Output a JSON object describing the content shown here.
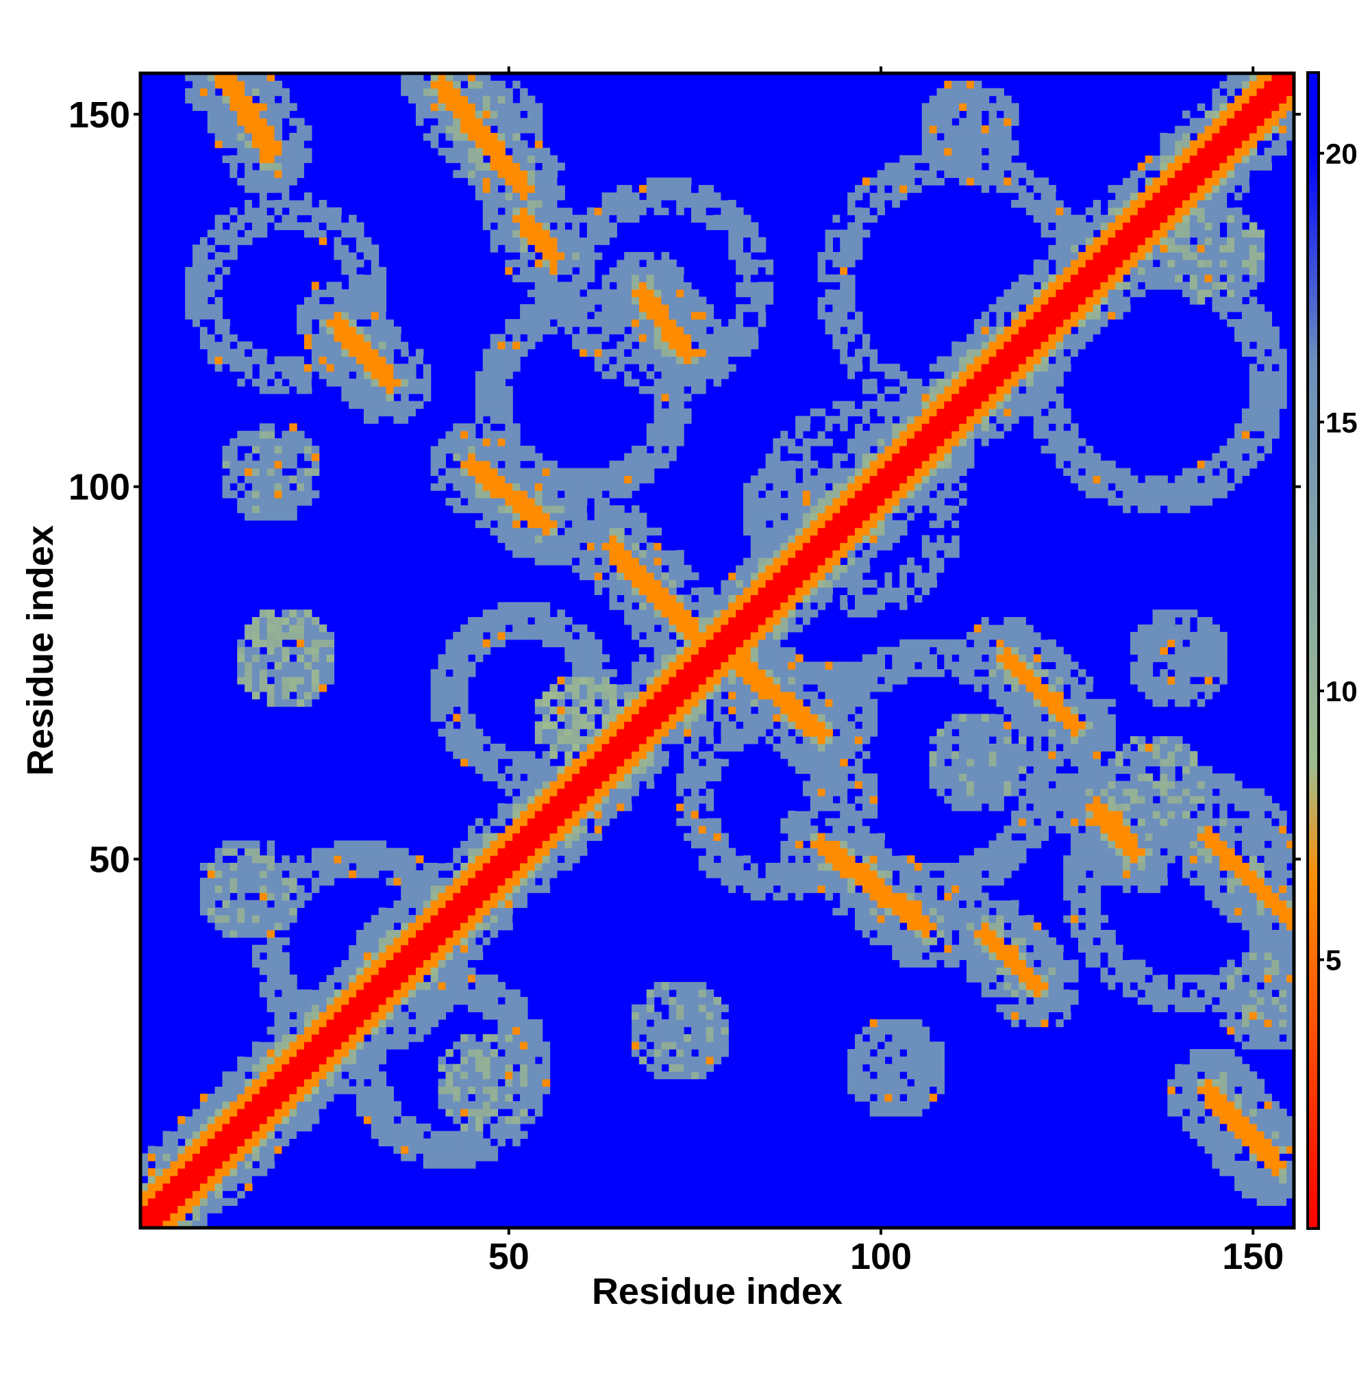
{
  "chart_data": {
    "type": "heatmap",
    "title": "",
    "xlabel": "Residue index",
    "ylabel": "Residue index",
    "xlim": [
      1,
      155
    ],
    "ylim": [
      1,
      155
    ],
    "x_ticks": [
      50,
      100,
      150
    ],
    "y_ticks": [
      50,
      100,
      150
    ],
    "x_tick_labels": [
      "50",
      "100",
      "150"
    ],
    "y_tick_labels": [
      "50",
      "100",
      "150"
    ],
    "colorbar": {
      "ticks": [
        5,
        10,
        15,
        20
      ],
      "tick_labels": [
        "5",
        "10",
        "15",
        "20"
      ],
      "range": [
        0,
        21.5
      ],
      "colors": [
        "#ff0000",
        "#ff8c00",
        "#9fbc8f",
        "#6d8fbc",
        "#0000ff"
      ]
    },
    "grid": false,
    "background_value": 21.5,
    "diagonal_band_value": 2,
    "contact_bands": [
      {
        "x": [
          12,
          18
        ],
        "y": [
          155,
          145
        ],
        "value": 7
      },
      {
        "x": [
          41,
          52
        ],
        "y": [
          154,
          140
        ],
        "value": 7
      },
      {
        "x": [
          52,
          56
        ],
        "y": [
          136,
          131
        ],
        "value": 7
      },
      {
        "x": [
          27,
          34
        ],
        "y": [
          122,
          114
        ],
        "value": 7
      },
      {
        "x": [
          68,
          74
        ],
        "y": [
          126,
          118
        ],
        "value": 7
      },
      {
        "x": [
          45,
          55
        ],
        "y": [
          103,
          95
        ],
        "value": 7
      },
      {
        "x": [
          64,
          75
        ],
        "y": [
          92,
          80
        ],
        "value": 7
      },
      {
        "x": [
          80,
          92
        ],
        "y": [
          77,
          67
        ],
        "value": 7
      },
      {
        "x": [
          92,
          106
        ],
        "y": [
          52,
          41
        ],
        "value": 7
      },
      {
        "x": [
          117,
          126
        ],
        "y": [
          77,
          68
        ],
        "value": 7
      },
      {
        "x": [
          114,
          121
        ],
        "y": [
          40,
          33
        ],
        "value": 7
      },
      {
        "x": [
          129,
          134
        ],
        "y": [
          57,
          51
        ],
        "value": 7
      },
      {
        "x": [
          144,
          155
        ],
        "y": [
          53,
          42
        ],
        "value": 7
      },
      {
        "x": [
          144,
          153
        ],
        "y": [
          19,
          9
        ],
        "value": 7
      },
      {
        "x": [
          98,
          112
        ],
        "y": [
          100,
          112
        ],
        "value": 7
      },
      {
        "x": [
          34,
          39
        ],
        "y": [
          36,
          41
        ],
        "value": 7
      },
      {
        "x": [
          55,
          60
        ],
        "y": [
          56,
          61
        ],
        "value": 7
      }
    ],
    "blobs": [
      {
        "x": 48,
        "y": 148,
        "value": 15
      },
      {
        "x": 18,
        "y": 102,
        "value": 15
      },
      {
        "x": 20,
        "y": 77,
        "value": 13
      },
      {
        "x": 15,
        "y": 46,
        "value": 15
      },
      {
        "x": 60,
        "y": 68,
        "value": 12
      },
      {
        "x": 113,
        "y": 63,
        "value": 15
      },
      {
        "x": 137,
        "y": 60,
        "value": 14
      },
      {
        "x": 93,
        "y": 70,
        "value": 16
      },
      {
        "x": 88,
        "y": 97,
        "value": 16
      },
      {
        "x": 140,
        "y": 77,
        "value": 16
      },
      {
        "x": 145,
        "y": 131,
        "value": 14
      },
      {
        "x": 112,
        "y": 148,
        "value": 16
      },
      {
        "x": 73,
        "y": 27,
        "value": 15
      },
      {
        "x": 102,
        "y": 22,
        "value": 16
      },
      {
        "x": 152,
        "y": 31,
        "value": 15
      },
      {
        "x": 47,
        "y": 20,
        "value": 14
      }
    ],
    "rings": [
      {
        "x": 30,
        "y": 38,
        "radius": 12,
        "value": 15
      },
      {
        "x": 20,
        "y": 126,
        "radius": 11,
        "value": 16
      },
      {
        "x": 60,
        "y": 112,
        "radius": 12,
        "value": 15
      },
      {
        "x": 110,
        "y": 127,
        "radius": 16,
        "value": 16
      },
      {
        "x": 137,
        "y": 114,
        "radius": 15,
        "value": 15
      },
      {
        "x": 107,
        "y": 62,
        "radius": 15,
        "value": 15
      },
      {
        "x": 141,
        "y": 46,
        "radius": 14,
        "value": 16
      },
      {
        "x": 42,
        "y": 22,
        "radius": 11,
        "value": 15
      },
      {
        "x": 71,
        "y": 127,
        "radius": 12,
        "value": 16
      },
      {
        "x": 97,
        "y": 97,
        "radius": 12,
        "value": 17
      },
      {
        "x": 86,
        "y": 58,
        "radius": 11,
        "value": 16
      },
      {
        "x": 52,
        "y": 72,
        "radius": 10,
        "value": 15
      }
    ]
  }
}
